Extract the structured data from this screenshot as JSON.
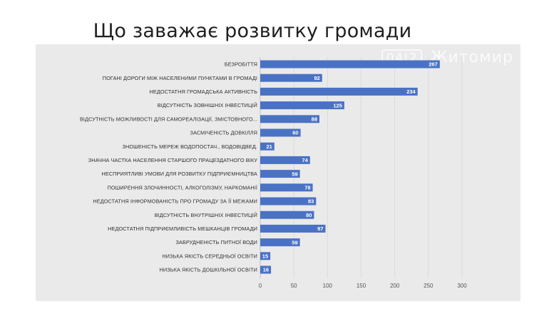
{
  "slide": {
    "title": "Що заважає розвитку громади",
    "watermark": {
      "number": "04|2",
      "text": "Житомир"
    }
  },
  "chart_data": {
    "type": "bar",
    "orientation": "horizontal",
    "title": "",
    "xlabel": "",
    "ylabel": "",
    "xlim": [
      0,
      300
    ],
    "xticks": [
      0,
      50,
      100,
      150,
      200,
      250,
      300
    ],
    "grid": true,
    "bar_color": "#4a72c4",
    "categories": [
      "БЕЗРОБІТТЯ",
      "ПОГАНІ ДОРОГИ МІЖ НАСЕЛЕНИМИ ПУНКТАМИ В ГРОМАДІ",
      "НЕДОСТАТНЯ ГРОМАДСЬКА АКТИВНІСТЬ",
      "ВІДСУТНІСТЬ ЗОВНІШНІХ ІНВЕСТИЦІЙ",
      "ВІДСУТНІСТЬ МОЖЛИВОСТІ ДЛЯ САМОРЕАЛІЗАЦІЇ, ЗМІСТОВНОГО...",
      "ЗАСМІЧЕНІСТЬ ДОВКІЛЛЯ",
      "ЗНОШЕНІСТЬ МЕРЕЖ ВОДОПОСТАЧ., ВОДОВІДВЕД.",
      "ЗНАЧНА ЧАСТКА НАСЕЛЕННЯ СТАРШОГО ПРАЦЕЗДАТНОГО ВІКУ",
      "НЕСПРИЯТЛИВІ УМОВИ ДЛЯ РОЗВИТКУ ПІДПРИЄМНИЦТВА",
      "ПОШИРЕННЯ ЗЛОЧИННОСТІ, АЛКОГОЛІЗМУ, НАРКОМАНІЇ",
      "НЕДОСТАТНЯ ІНФОРМОВАНІСТЬ ПРО ГРОМАДУ ЗА ЇЇ МЕЖАМИ",
      "ВІДСУТНІСТЬ ВНУТРІШНІХ ІНВЕСТИЦІЙ",
      "НЕДОСТАТНЯ ПІДПРИЄМЛИВІСТЬ МЕШКАНЦІВ ГРОМАДИ",
      "ЗАБРУДНЕНІСТЬ ПИТНОЇ ВОДИ",
      "НИЗЬКА ЯКІСТЬ СЕРЕДНЬОЇ ОСВІТИ",
      "НИЗЬКА ЯКІСТЬ ДОШКІЛЬНОЇ ОСВІТИ"
    ],
    "values": [
      267,
      92,
      234,
      125,
      88,
      60,
      21,
      74,
      59,
      78,
      83,
      80,
      97,
      59,
      15,
      16
    ]
  }
}
